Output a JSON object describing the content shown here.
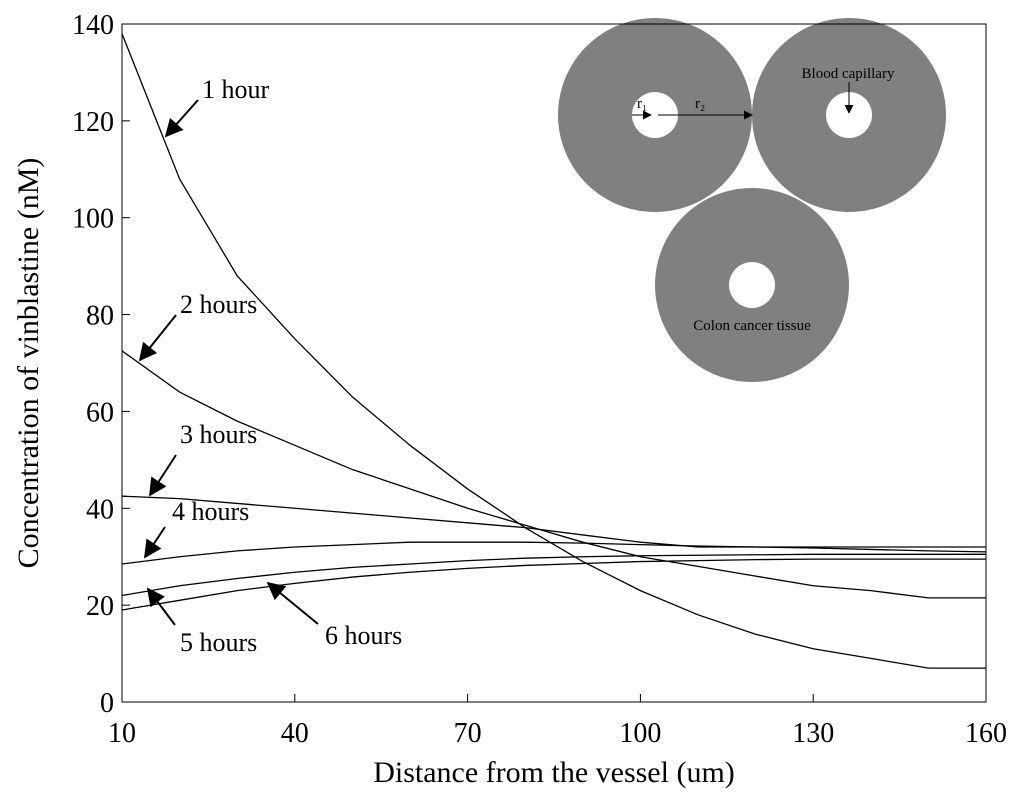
{
  "chart_data": {
    "type": "line",
    "xlabel": "Distance from the vessel (um)",
    "ylabel": "Concentration of vinblastine (nM)",
    "x": [
      10,
      20,
      30,
      40,
      50,
      60,
      70,
      80,
      90,
      100,
      110,
      120,
      130,
      140,
      150,
      160
    ],
    "series": [
      {
        "name": "1 hour",
        "color": "#000000",
        "values": [
          138,
          108,
          88,
          75,
          63,
          53,
          44,
          36,
          29,
          23,
          18,
          14,
          11,
          9,
          7,
          7
        ]
      },
      {
        "name": "2 hours",
        "color": "#000000",
        "values": [
          72.5,
          64,
          58,
          53,
          48,
          44,
          40,
          36.5,
          33,
          30,
          28,
          26,
          24,
          23,
          21.5,
          21.5
        ]
      },
      {
        "name": "3 hours",
        "color": "#000000",
        "values": [
          42.5,
          42,
          41,
          40,
          39,
          38,
          37,
          36,
          34.5,
          33,
          32,
          32,
          32,
          32,
          32,
          32
        ]
      },
      {
        "name": "4 hours",
        "color": "#000000",
        "values": [
          28.5,
          30,
          31.2,
          32,
          32.5,
          33,
          33,
          33,
          32.8,
          32.5,
          32.2,
          32,
          31.8,
          31.5,
          31.2,
          31
        ]
      },
      {
        "name": "5 hours",
        "color": "#000000",
        "values": [
          22,
          24,
          25.5,
          26.8,
          27.8,
          28.5,
          29.2,
          29.7,
          30,
          30.2,
          30.3,
          30.4,
          30.5,
          30.5,
          30.5,
          30.5
        ]
      },
      {
        "name": "6 hours",
        "color": "#000000",
        "values": [
          19,
          21,
          23,
          24.5,
          25.8,
          26.8,
          27.6,
          28.2,
          28.6,
          29,
          29.2,
          29.4,
          29.5,
          29.5,
          29.5,
          29.5
        ]
      }
    ],
    "xlim": [
      10,
      160
    ],
    "xticks": [
      10,
      40,
      70,
      100,
      130,
      160
    ],
    "ylim": [
      0,
      140
    ],
    "yticks": [
      0,
      20,
      40,
      60,
      80,
      100,
      120,
      140
    ],
    "inset": {
      "labels": [
        "Blood capillary",
        "Colon cancer tissue",
        "r₁",
        "r₂"
      ]
    }
  }
}
